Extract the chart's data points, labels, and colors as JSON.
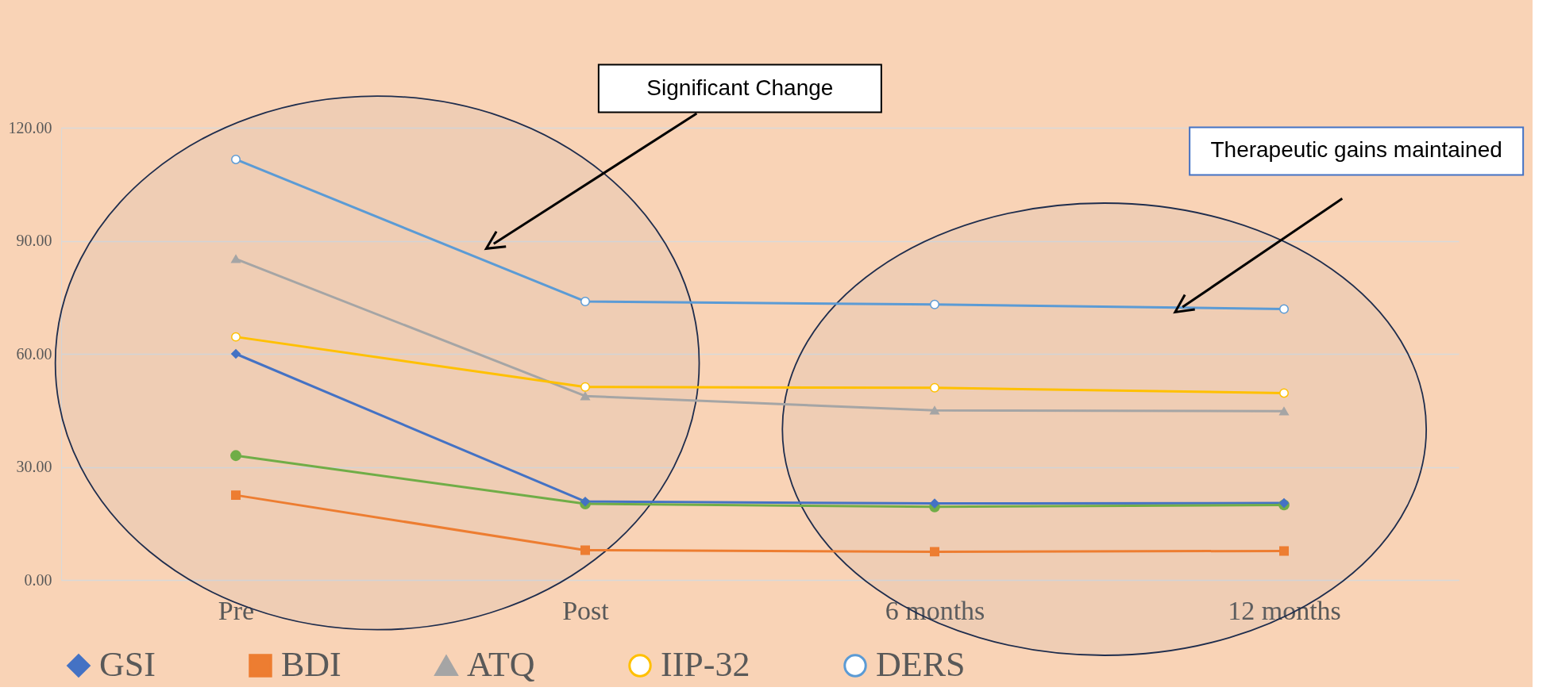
{
  "chart_data": {
    "type": "line",
    "categories": [
      "Pre",
      "Post",
      "6 months",
      "12 months"
    ],
    "series": [
      {
        "name": "GSI",
        "color": "#4472c4",
        "marker": "diamond",
        "values": [
          60.0,
          20.8,
          20.3,
          20.4
        ]
      },
      {
        "name": "BDI",
        "color": "#ed7d31",
        "marker": "square",
        "values": [
          22.5,
          7.9,
          7.5,
          7.7
        ]
      },
      {
        "name": "ATQ",
        "color": "#a5a5a5",
        "marker": "triangle",
        "values": [
          85.2,
          48.8,
          45.0,
          44.8
        ]
      },
      {
        "name": "IIP-32",
        "color": "#ffc000",
        "marker": "circle",
        "values": [
          64.5,
          51.2,
          51.0,
          49.6
        ]
      },
      {
        "name": "DERS",
        "color": "#5b9bd5",
        "marker": "circle",
        "values": [
          111.6,
          73.9,
          73.1,
          71.9
        ]
      },
      {
        "color": "#70ad47",
        "marker": "circle",
        "values": [
          33.0,
          20.2,
          19.4,
          19.9
        ]
      }
    ],
    "ylim": [
      0,
      120
    ],
    "yticks": [
      {
        "value": 0,
        "label": "0.00"
      },
      {
        "value": 30,
        "label": "30.00"
      },
      {
        "value": 60,
        "label": "60.00"
      },
      {
        "value": 90,
        "label": "90.00"
      },
      {
        "value": 120,
        "label": "120.00"
      }
    ],
    "grid": "y",
    "legend": "bottom",
    "line_style": "solid",
    "annotations": [
      "Significant Change",
      "Therapeutic gains maintained"
    ]
  }
}
